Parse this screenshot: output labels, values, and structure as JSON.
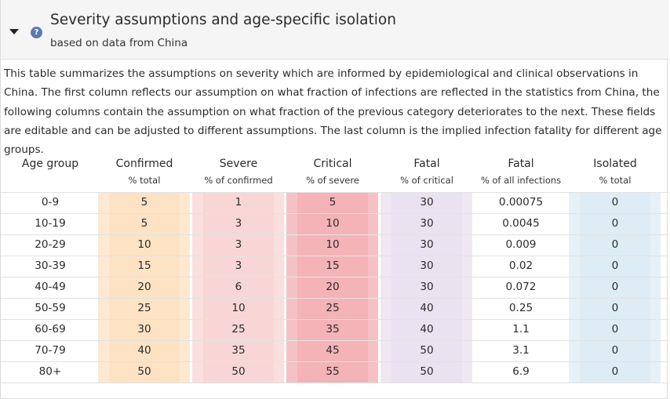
{
  "header": {
    "title": "Severity assumptions and age-specific isolation",
    "subtitle": "based on data from China",
    "help_glyph": "?"
  },
  "description": "This table summarizes the assumptions on severity which are informed by epidemiological and clinical observations in China. The first column reflects our assumption on what fraction of infections are reflected in the statistics from China, the following columns contain the assumption on what fraction of the previous category deteriorates to the next. These fields are editable and can be adjusted to different assumptions. The last column is the implied infection fatality for different age groups.",
  "columns": [
    {
      "label": "Age group",
      "unit": ""
    },
    {
      "label": "Confirmed",
      "unit": "% total"
    },
    {
      "label": "Severe",
      "unit": "% of confirmed"
    },
    {
      "label": "Critical",
      "unit": "% of severe"
    },
    {
      "label": "Fatal",
      "unit": "% of critical"
    },
    {
      "label": "Fatal",
      "unit": "% of all infections"
    },
    {
      "label": "Isolated",
      "unit": "% total"
    }
  ],
  "rows": [
    {
      "age": "0-9",
      "confirmed": "5",
      "severe": "1",
      "critical": "5",
      "fatal": "30",
      "fatal_all": "0.00075",
      "isolated": "0"
    },
    {
      "age": "10-19",
      "confirmed": "5",
      "severe": "3",
      "critical": "10",
      "fatal": "30",
      "fatal_all": "0.0045",
      "isolated": "0"
    },
    {
      "age": "20-29",
      "confirmed": "10",
      "severe": "3",
      "critical": "10",
      "fatal": "30",
      "fatal_all": "0.009",
      "isolated": "0"
    },
    {
      "age": "30-39",
      "confirmed": "15",
      "severe": "3",
      "critical": "15",
      "fatal": "30",
      "fatal_all": "0.02",
      "isolated": "0"
    },
    {
      "age": "40-49",
      "confirmed": "20",
      "severe": "6",
      "critical": "20",
      "fatal": "30",
      "fatal_all": "0.072",
      "isolated": "0"
    },
    {
      "age": "50-59",
      "confirmed": "25",
      "severe": "10",
      "critical": "25",
      "fatal": "40",
      "fatal_all": "0.25",
      "isolated": "0"
    },
    {
      "age": "60-69",
      "confirmed": "30",
      "severe": "25",
      "critical": "35",
      "fatal": "40",
      "fatal_all": "1.1",
      "isolated": "0"
    },
    {
      "age": "70-79",
      "confirmed": "40",
      "severe": "35",
      "critical": "45",
      "fatal": "50",
      "fatal_all": "3.1",
      "isolated": "0"
    },
    {
      "age": "80+",
      "confirmed": "50",
      "severe": "50",
      "critical": "55",
      "fatal": "50",
      "fatal_all": "6.9",
      "isolated": "0"
    }
  ],
  "colors": {
    "confirmed": "#fde3c4",
    "severe": "#f9d6d6",
    "critical": "#f4b3b7",
    "fatal": "#eae2f0",
    "isolated": "#deedf5",
    "help_icon": "#5b7ab6"
  }
}
